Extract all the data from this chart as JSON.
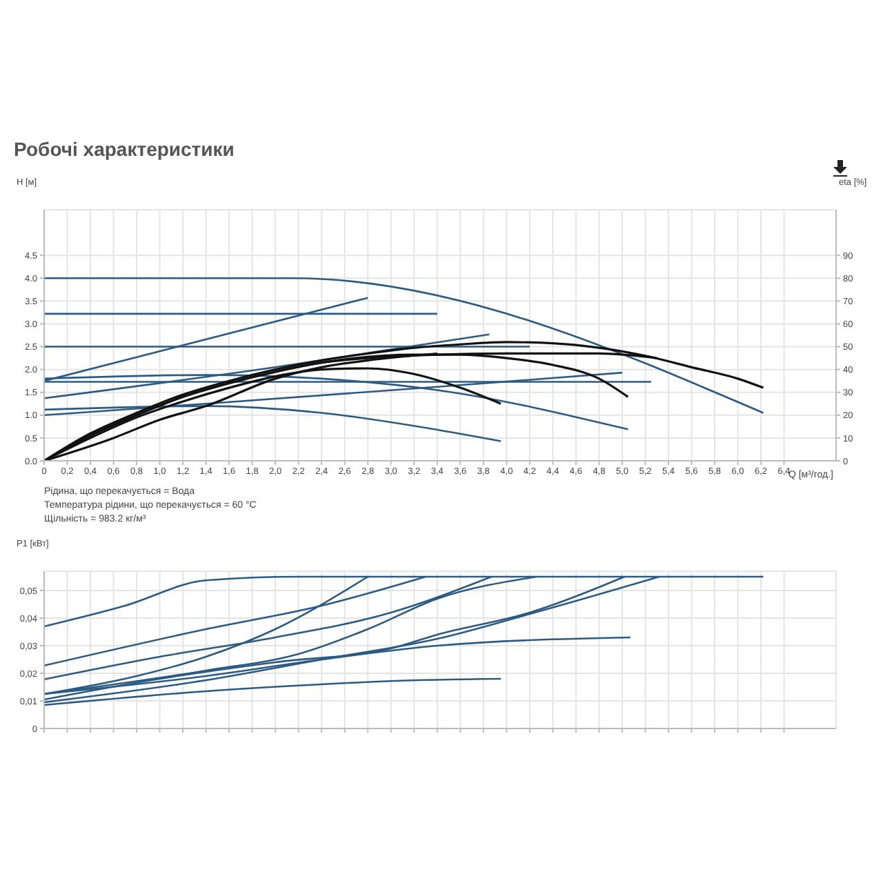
{
  "chart_data": [
    {
      "type": "line",
      "title": "Робочі характеристики",
      "ylabel": "H [м]",
      "y2label": "eta [%]",
      "xlabel": "Q [м³/год.]",
      "xlim": [
        0,
        6.85
      ],
      "ylim": [
        0,
        5.5
      ],
      "y2lim": [
        0,
        110
      ],
      "grid": true,
      "marker": "none",
      "line_style": "solid",
      "xticks": [
        0,
        {
          "value": 0.2,
          "label": "0,2"
        },
        {
          "value": 0.4,
          "label": "0,4"
        },
        {
          "value": 0.6,
          "label": "0,6"
        },
        {
          "value": 0.8,
          "label": "0,8"
        },
        {
          "value": 1,
          "label": "1,0"
        },
        {
          "value": 1.2,
          "label": "1,2"
        },
        {
          "value": 1.4,
          "label": "1,4"
        },
        {
          "value": 1.6,
          "label": "1,6"
        },
        {
          "value": 1.8,
          "label": "1,8"
        },
        {
          "value": 2,
          "label": "2,0"
        },
        {
          "value": 2.2,
          "label": "2,2"
        },
        {
          "value": 2.4,
          "label": "2,4"
        },
        {
          "value": 2.6,
          "label": "2,6"
        },
        {
          "value": 2.8,
          "label": "2,8"
        },
        {
          "value": 3,
          "label": "3,0"
        },
        {
          "value": 3.2,
          "label": "3,2"
        },
        {
          "value": 3.4,
          "label": "3,4"
        },
        {
          "value": 3.6,
          "label": "3,6"
        },
        {
          "value": 3.8,
          "label": "3,8"
        },
        {
          "value": 4,
          "label": "4,0"
        },
        {
          "value": 4.2,
          "label": "4,2"
        },
        {
          "value": 4.4,
          "label": "4,4"
        },
        {
          "value": 4.6,
          "label": "4,6"
        },
        {
          "value": 4.8,
          "label": "4,8"
        },
        {
          "value": 5,
          "label": "5,0"
        },
        {
          "value": 5.2,
          "label": "5,2"
        },
        {
          "value": 5.4,
          "label": "5,4"
        },
        {
          "value": 5.6,
          "label": "5,6"
        },
        {
          "value": 5.8,
          "label": "5,8"
        },
        {
          "value": 6,
          "label": "6,0"
        },
        {
          "value": 6.2,
          "label": "6,2"
        },
        {
          "value": 6.4,
          "label": "6,4"
        }
      ],
      "yticks": [
        {
          "value": 0,
          "label": "0.0"
        },
        {
          "value": 0.5,
          "label": "0.5"
        },
        {
          "value": 1,
          "label": "1.0"
        },
        {
          "value": 1.5,
          "label": "1.5"
        },
        {
          "value": 2,
          "label": "2.0"
        },
        {
          "value": 2.5,
          "label": "2.5"
        },
        {
          "value": 3,
          "label": "3.0"
        },
        {
          "value": 3.5,
          "label": "3.5"
        },
        {
          "value": 4,
          "label": "4.0"
        },
        {
          "value": 4.5,
          "label": "4.5"
        }
      ],
      "y2ticks": [
        0,
        10,
        20,
        30,
        40,
        50,
        60,
        70,
        80,
        90
      ],
      "annotations": [
        "Рідина, що перекачується = Вода",
        "Температура рідини, що перекачується = 60 °C",
        "Щільність = 983.2 кг/м³"
      ],
      "series": [
        {
          "color": "#2b5a82",
          "x": [
            0,
            2.15,
            6.22
          ],
          "values": [
            4.0,
            4.0,
            1.05
          ]
        },
        {
          "color": "#2b5a82",
          "x": [
            0,
            3.4
          ],
          "values": [
            3.22,
            3.22
          ]
        },
        {
          "color": "#2b5a82",
          "x": [
            0,
            2.8
          ],
          "values": [
            1.75,
            3.57
          ]
        },
        {
          "color": "#2b5a82",
          "x": [
            0,
            4.2
          ],
          "values": [
            2.5,
            2.5
          ]
        },
        {
          "color": "#2b5a82",
          "x": [
            0,
            2.0,
            3.85
          ],
          "values": [
            1.37,
            2.05,
            2.77
          ]
        },
        {
          "color": "#2b5a82",
          "x": [
            0,
            1.4,
            2.4,
            3.4,
            5.05
          ],
          "values": [
            1.8,
            1.88,
            1.8,
            1.55,
            0.69
          ]
        },
        {
          "color": "#2b5a82",
          "x": [
            0,
            5.25
          ],
          "values": [
            1.73,
            1.73
          ]
        },
        {
          "color": "#2b5a82",
          "x": [
            0,
            1.4,
            2.4,
            3.4,
            3.95
          ],
          "values": [
            1.12,
            1.2,
            1.05,
            0.68,
            0.43
          ]
        },
        {
          "color": "#2b5a82",
          "x": [
            0,
            1.4,
            3.4,
            5.0
          ],
          "values": [
            1.0,
            1.25,
            1.62,
            1.93
          ]
        },
        {
          "color": "#111111",
          "axis": "y2",
          "x": [
            0,
            0.4,
            0.8,
            1.2,
            1.6,
            2.0,
            2.4,
            2.8,
            3.2,
            3.6,
            4.0,
            4.4,
            4.8,
            5.2,
            5.6,
            6.0,
            6.22
          ],
          "values": [
            0,
            12,
            21,
            29,
            35,
            40,
            44,
            47,
            49.5,
            51,
            52,
            51.5,
            49.5,
            46,
            41,
            36,
            32
          ]
        },
        {
          "color": "#111111",
          "axis": "y2",
          "x": [
            0,
            0.4,
            0.8,
            1.2,
            1.6,
            2.0,
            2.4,
            2.8,
            3.4,
            4.0,
            4.8,
            5.3
          ],
          "values": [
            0,
            11,
            20,
            28,
            34,
            39,
            43,
            45,
            46.5,
            47,
            47,
            45
          ]
        },
        {
          "color": "#111111",
          "axis": "y2",
          "x": [
            0,
            0.4,
            0.8,
            1.2,
            1.6,
            2.0,
            2.4,
            3.2,
            3.6,
            4.0,
            4.4,
            4.8,
            5.05
          ],
          "values": [
            0,
            11,
            20,
            28,
            34,
            39,
            43,
            46.5,
            46.5,
            45,
            42,
            36,
            28
          ]
        },
        {
          "color": "#111111",
          "axis": "y2",
          "x": [
            0,
            0.4,
            0.8,
            1.2,
            1.6,
            2.0,
            2.4,
            2.8,
            3.2,
            3.6,
            3.95
          ],
          "values": [
            0,
            10,
            19,
            26,
            32,
            37,
            40,
            40.5,
            38,
            32,
            25
          ]
        },
        {
          "color": "#111111",
          "axis": "y2",
          "x": [
            0,
            0.6,
            1.0,
            1.4,
            2.0,
            2.4,
            2.8,
            3.4
          ],
          "values": [
            0,
            10,
            18,
            24,
            36,
            41,
            44,
            47
          ]
        }
      ]
    },
    {
      "type": "line",
      "ylabel": "P1 [кВт]",
      "xlim": [
        0,
        6.85
      ],
      "ylim": [
        0,
        0.057
      ],
      "grid": true,
      "marker": "none",
      "line_style": "solid",
      "tick_labels": "y",
      "xticks": [
        0,
        0.2,
        0.4,
        0.6,
        0.8,
        1,
        1.2,
        1.4,
        1.6,
        1.8,
        2,
        2.2,
        2.4,
        2.6,
        2.8,
        3,
        3.2,
        3.4,
        3.6,
        3.8,
        4,
        4.2,
        4.4,
        4.6,
        4.8,
        5,
        5.2,
        5.4,
        5.6,
        5.8,
        6,
        6.2,
        6.4
      ],
      "yticks": [
        0,
        {
          "value": 0.01,
          "label": "0,01"
        },
        {
          "value": 0.02,
          "label": "0,02"
        },
        {
          "value": 0.03,
          "label": "0,03"
        },
        {
          "value": 0.04,
          "label": "0,04"
        },
        {
          "value": 0.05,
          "label": "0,05"
        }
      ],
      "series": [
        {
          "color": "#2b5a82",
          "x": [
            0,
            0.7,
            1.4,
            2.2,
            6.22
          ],
          "values": [
            0.037,
            0.0445,
            0.0537,
            0.055,
            0.055
          ]
        },
        {
          "color": "#2b5a82",
          "x": [
            0,
            1.4,
            2.4,
            3.3
          ],
          "values": [
            0.0228,
            0.036,
            0.0445,
            0.055
          ]
        },
        {
          "color": "#2b5a82",
          "x": [
            0,
            0.8,
            1.4,
            2.0,
            2.8
          ],
          "values": [
            0.0125,
            0.019,
            0.026,
            0.036,
            0.055
          ]
        },
        {
          "color": "#2b5a82",
          "x": [
            0,
            1.0,
            2.0,
            3.0,
            3.87
          ],
          "values": [
            0.0178,
            0.026,
            0.033,
            0.042,
            0.055
          ]
        },
        {
          "color": "#2b5a82",
          "x": [
            0,
            1.4,
            2.2,
            2.8,
            3.4,
            4.26
          ],
          "values": [
            0.0125,
            0.021,
            0.027,
            0.036,
            0.047,
            0.055
          ]
        },
        {
          "color": "#2b5a82",
          "x": [
            0,
            1.0,
            2.0,
            3.0,
            3.4,
            4.2,
            5.02
          ],
          "values": [
            0.0105,
            0.018,
            0.024,
            0.029,
            0.034,
            0.042,
            0.055
          ]
        },
        {
          "color": "#2b5a82",
          "x": [
            0,
            1.4,
            2.4,
            3.4,
            4.2,
            5.32
          ],
          "values": [
            0.0095,
            0.0175,
            0.025,
            0.0325,
            0.0415,
            0.055
          ]
        },
        {
          "color": "#2b5a82",
          "x": [
            0,
            1.4,
            2.4,
            3.4,
            5.07
          ],
          "values": [
            0.0125,
            0.019,
            0.025,
            0.03,
            0.033
          ]
        },
        {
          "color": "#2b5a82",
          "x": [
            0,
            1.4,
            2.4,
            3.0,
            3.95
          ],
          "values": [
            0.0085,
            0.0135,
            0.016,
            0.0172,
            0.018
          ]
        }
      ]
    }
  ]
}
